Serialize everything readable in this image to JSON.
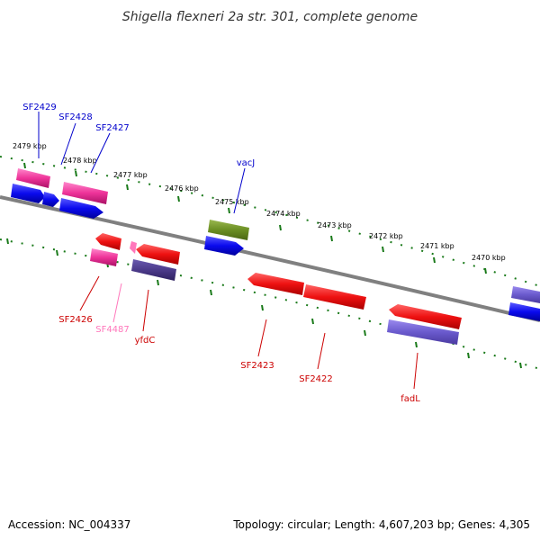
{
  "title": "Shigella flexneri 2a str. 301, complete genome",
  "footer": {
    "accession": "Accession: NC_004337",
    "topology": "Topology: circular; Length: 4,607,203 bp; Genes: 4,305"
  },
  "ruler_labels": [
    "2479 kbp",
    "2478 kbp",
    "2477 kbp",
    "2476 kbp",
    "2475 kbp",
    "2474 kbp",
    "2473 kbp",
    "2472 kbp",
    "2471 kbp",
    "2470 kbp"
  ],
  "gene_labels_upper": [
    "SF2429",
    "SF2428",
    "SF2427",
    "vacJ"
  ],
  "gene_labels_lower": [
    "SF2426",
    "SF4487",
    "yfdC",
    "SF2423",
    "SF2422",
    "fadL"
  ],
  "colors": {
    "backbone": "#808080",
    "ruler": "#1a7a1a",
    "cds_forward": "#0a0aee",
    "cds_reverse": "#ee1111",
    "pink": "#ee3399",
    "purple": "#6a5acd",
    "dark_purple": "#4b3a8a",
    "olive": "#6b8e23",
    "label_blue": "#0000cc",
    "label_red": "#cc0000",
    "label_pink": "#ff77bb"
  }
}
